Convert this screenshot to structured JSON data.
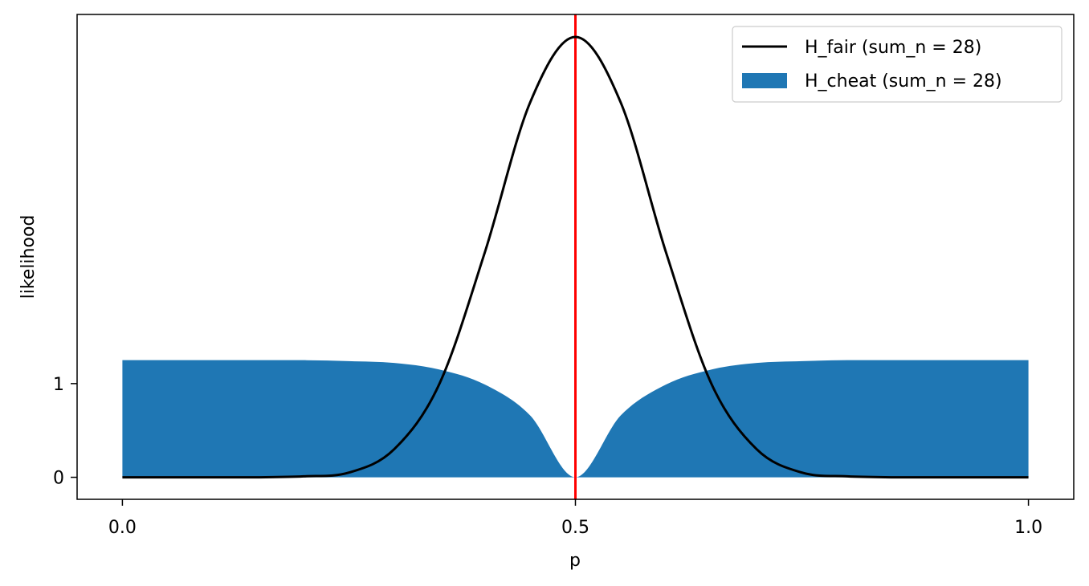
{
  "chart_data": {
    "type": "area",
    "xlabel": "p",
    "ylabel": "likelihood",
    "xlim": [
      -0.05,
      1.05
    ],
    "ylim": [
      -0.235,
      4.94
    ],
    "xticks": [
      0.0,
      0.5,
      1.0
    ],
    "xtick_labels": [
      "0.0",
      "0.5",
      "1.0"
    ],
    "yticks": [
      0,
      1
    ],
    "ytick_labels": [
      "0",
      "1"
    ],
    "grid": false,
    "legend_position": "top-right",
    "x": [
      0.0,
      0.05,
      0.1,
      0.15,
      0.2,
      0.25,
      0.3,
      0.35,
      0.4,
      0.45,
      0.5,
      0.55,
      0.6,
      0.65,
      0.7,
      0.75,
      0.8,
      0.85,
      0.9,
      0.95,
      1.0
    ],
    "series": [
      {
        "name": "H_fair (sum_n = 28)",
        "kind": "line",
        "color": "#000000",
        "values": [
          0.0,
          0.0,
          0.0,
          0.0,
          0.01,
          0.05,
          0.3,
          1.0,
          2.4,
          4.0,
          4.7,
          4.0,
          2.4,
          1.0,
          0.3,
          0.05,
          0.01,
          0.0,
          0.0,
          0.0,
          0.0
        ]
      },
      {
        "name": "H_cheat (sum_n = 28)",
        "kind": "filled-area",
        "color": "#1f77b4",
        "values": [
          1.25,
          1.25,
          1.25,
          1.25,
          1.25,
          1.24,
          1.22,
          1.15,
          0.99,
          0.66,
          0.0,
          0.66,
          0.99,
          1.15,
          1.22,
          1.24,
          1.25,
          1.25,
          1.25,
          1.25,
          1.25
        ]
      }
    ],
    "vline": {
      "x": 0.5,
      "color": "#ff0000"
    }
  }
}
